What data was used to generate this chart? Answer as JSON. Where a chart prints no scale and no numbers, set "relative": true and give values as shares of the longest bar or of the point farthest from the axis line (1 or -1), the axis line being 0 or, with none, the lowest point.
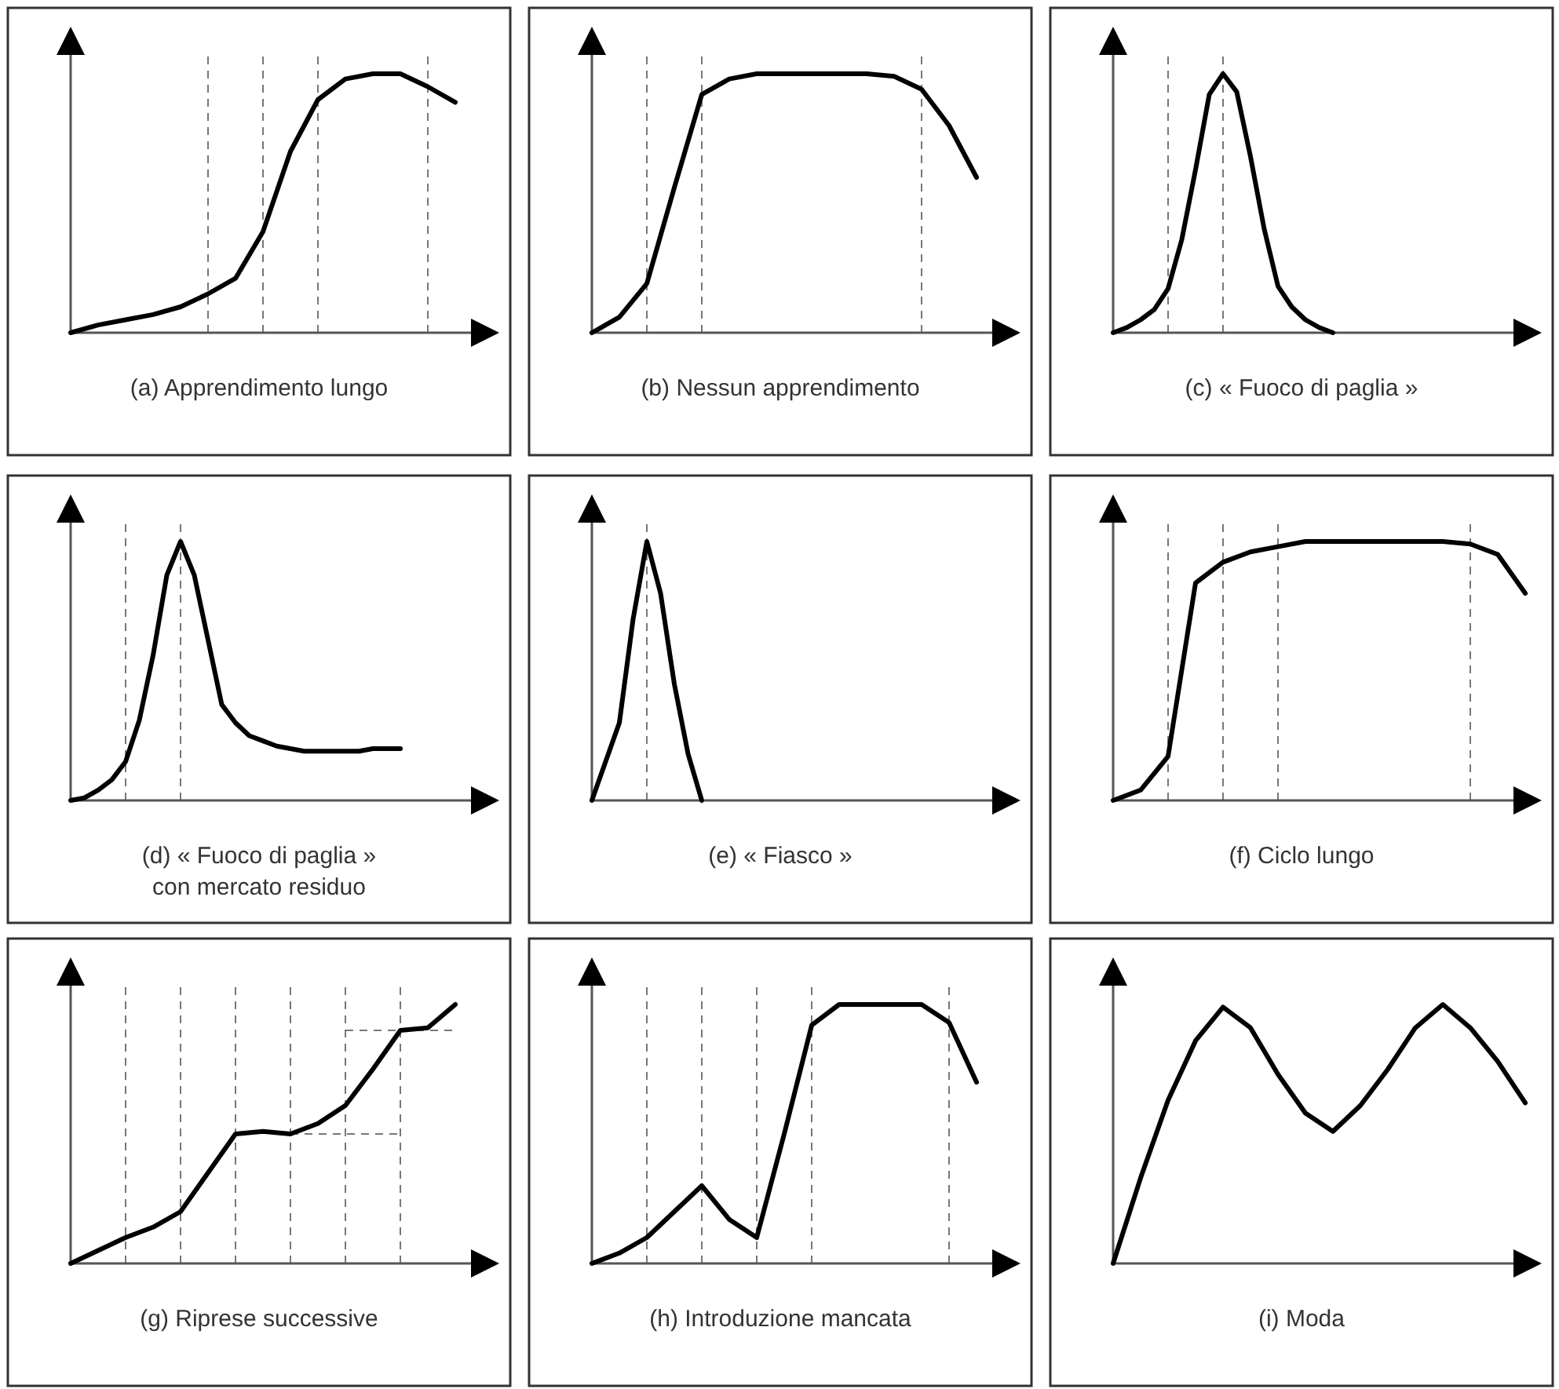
{
  "chart_data": [
    {
      "type": "line",
      "title": "(a) Apprendimento lungo",
      "relative": true,
      "color": "#000000",
      "grid": "x",
      "categories": [
        null,
        null,
        null,
        null,
        null,
        null,
        null,
        null,
        null,
        null,
        null,
        null,
        null,
        null,
        null
      ],
      "values": [
        0,
        0.03,
        0.05,
        0.07,
        0.1,
        0.15,
        0.21,
        0.39,
        0.7,
        0.9,
        0.98,
        1,
        1,
        0.95,
        0.89
      ]
    },
    {
      "type": "line",
      "title": "(b) Nessun apprendimento",
      "relative": true,
      "color": "#000000",
      "grid": "x",
      "categories": [
        null,
        null,
        null,
        null,
        null,
        null,
        null,
        null,
        null,
        null,
        null,
        null,
        null,
        null,
        null
      ],
      "values": [
        0,
        0.06,
        0.19,
        0.56,
        0.92,
        0.98,
        1,
        1,
        1,
        1,
        1,
        0.99,
        0.94,
        0.8,
        0.6
      ]
    },
    {
      "type": "line",
      "title": "(c) « Fuoco di paglia »",
      "relative": true,
      "color": "#000000",
      "grid": "x",
      "categories": [
        null,
        null,
        null,
        null,
        null,
        null,
        null,
        null,
        null,
        null,
        null,
        null,
        null,
        null,
        null,
        null,
        null,
        null,
        null,
        null,
        null,
        null,
        null,
        null,
        null,
        null,
        null,
        null,
        null
      ],
      "values": [
        0,
        0.02,
        0.05,
        0.09,
        0.17,
        0.36,
        0.63,
        0.92,
        1,
        0.93,
        0.68,
        0.4,
        0.18,
        0.1,
        0.05,
        0.02,
        0,
        null,
        null,
        null,
        null,
        null,
        null,
        null,
        null,
        null,
        null,
        null,
        null
      ]
    },
    {
      "type": "line",
      "title": "(d) « Fuoco di paglia »\ncon mercato residuo",
      "relative": true,
      "color": "#000000",
      "grid": "x",
      "categories": [
        null,
        null,
        null,
        null,
        null,
        null,
        null,
        null,
        null,
        null,
        null,
        null,
        null,
        null,
        null,
        null,
        null,
        null,
        null,
        null,
        null,
        null,
        null,
        null,
        null,
        null,
        null,
        null,
        null
      ],
      "values": [
        0,
        0.01,
        0.04,
        0.08,
        0.15,
        0.31,
        0.56,
        0.87,
        1,
        0.87,
        0.62,
        0.37,
        0.3,
        0.25,
        0.23,
        0.21,
        0.2,
        0.19,
        0.19,
        0.19,
        0.19,
        0.19,
        0.2,
        0.2,
        0.2,
        null,
        null,
        null,
        null
      ]
    },
    {
      "type": "line",
      "title": "(e) « Fiasco »",
      "relative": true,
      "color": "#000000",
      "grid": "x",
      "categories": [
        null,
        null,
        null,
        null,
        null,
        null,
        null,
        null,
        null,
        null,
        null,
        null,
        null,
        null,
        null,
        null,
        null,
        null,
        null,
        null,
        null,
        null,
        null,
        null,
        null,
        null,
        null,
        null,
        null
      ],
      "values": [
        0,
        0.15,
        0.3,
        0.7,
        1,
        0.8,
        0.45,
        0.18,
        0,
        null,
        null,
        null,
        null,
        null,
        null,
        null,
        null,
        null,
        null,
        null,
        null,
        null,
        null,
        null,
        null,
        null,
        null,
        null,
        null
      ]
    },
    {
      "type": "line",
      "title": "(f) Ciclo lungo",
      "relative": true,
      "color": "#000000",
      "grid": "x",
      "categories": [
        null,
        null,
        null,
        null,
        null,
        null,
        null,
        null,
        null,
        null,
        null,
        null,
        null,
        null,
        null,
        null
      ],
      "values": [
        0,
        0.04,
        0.17,
        0.84,
        0.92,
        0.96,
        0.98,
        1,
        1,
        1,
        1,
        1,
        1,
        0.99,
        0.95,
        0.8
      ]
    },
    {
      "type": "line",
      "title": "(g) Riprese successive",
      "relative": true,
      "color": "#000000",
      "grid": "x",
      "ref_lines": [
        {
          "axis": "y",
          "value": 0.5,
          "line_style": "dashed",
          "color": "#777777"
        },
        {
          "axis": "y",
          "value": 0.9,
          "line_style": "dashed",
          "color": "#777777"
        }
      ],
      "categories": [
        null,
        null,
        null,
        null,
        null,
        null,
        null,
        null,
        null,
        null,
        null,
        null,
        null,
        null,
        null
      ],
      "values": [
        0,
        0.05,
        0.1,
        0.14,
        0.2,
        0.35,
        0.5,
        0.51,
        0.5,
        0.54,
        0.61,
        0.75,
        0.9,
        0.91,
        1
      ]
    },
    {
      "type": "line",
      "title": "(h) Introduzione mancata",
      "relative": true,
      "color": "#000000",
      "grid": "x",
      "categories": [
        null,
        null,
        null,
        null,
        null,
        null,
        null,
        null,
        null,
        null,
        null,
        null,
        null,
        null,
        null
      ],
      "values": [
        0,
        0.04,
        0.1,
        0.2,
        0.3,
        0.17,
        0.1,
        0.5,
        0.92,
        1,
        1,
        1,
        1,
        0.93,
        0.7
      ]
    },
    {
      "type": "line",
      "title": "(i) Moda",
      "relative": true,
      "color": "#000000",
      "categories": [
        null,
        null,
        null,
        null,
        null,
        null,
        null,
        null,
        null,
        null,
        null,
        null,
        null,
        null,
        null,
        null
      ],
      "values": [
        0,
        0.33,
        0.63,
        0.86,
        0.99,
        0.91,
        0.73,
        0.58,
        0.51,
        0.61,
        0.75,
        0.91,
        1,
        0.91,
        0.78,
        0.62
      ]
    }
  ]
}
